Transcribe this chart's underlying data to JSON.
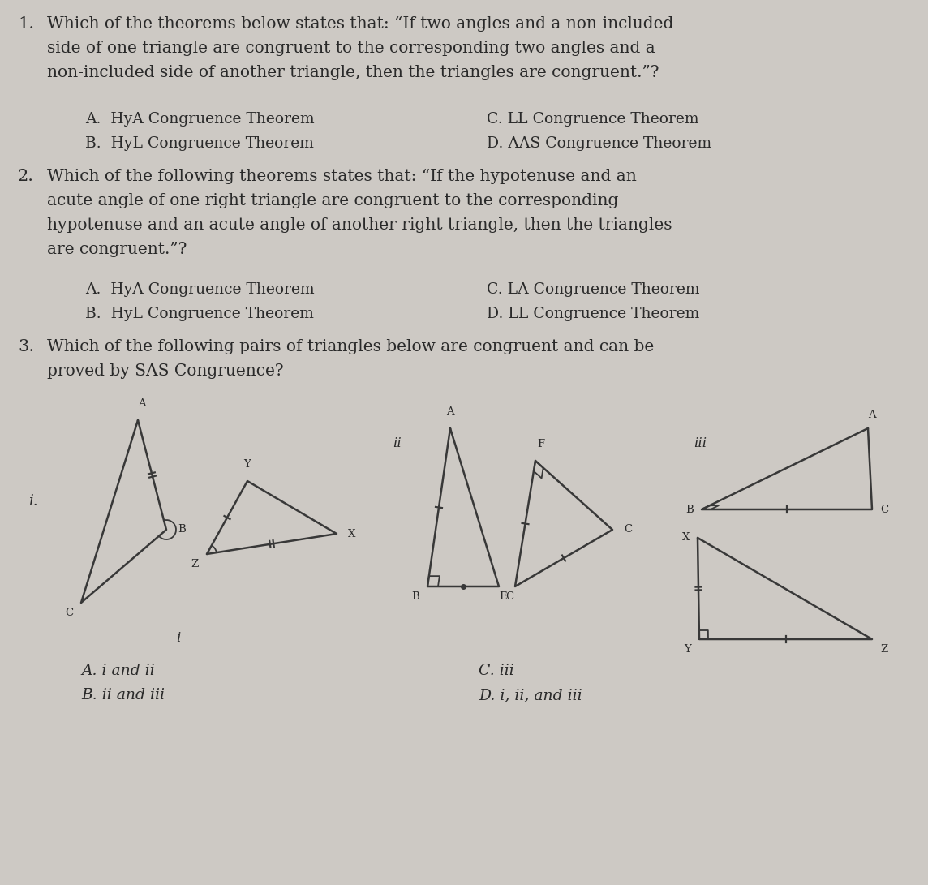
{
  "bg_color": "#cdc9c4",
  "text_color": "#2a2a2a",
  "q1_num": "1.",
  "q1_text_line1": "Which of the theorems below states that: “If two angles and a non-included",
  "q1_text_line2": "side of one triangle are congruent to the corresponding two angles and a",
  "q1_text_line3": "non-included side of another triangle, then the triangles are congruent.”?",
  "q1_A": "A.  HyA Congruence Theorem",
  "q1_C": "C. LL Congruence Theorem",
  "q1_B": "B.  HyL Congruence Theorem",
  "q1_D": "D. AAS Congruence Theorem",
  "q2_num": "2.",
  "q2_text_line1": "Which of the following theorems states that: “If the hypotenuse and an",
  "q2_text_line2": "acute angle of one right triangle are congruent to the corresponding",
  "q2_text_line3": "hypotenuse and an acute angle of another right triangle, then the triangles",
  "q2_text_line4": "are congruent.”?",
  "q2_A": "A.  HyA Congruence Theorem",
  "q2_C": "C. LA Congruence Theorem",
  "q2_B": "B.  HyL Congruence Theorem",
  "q2_D": "D. LL Congruence Theorem",
  "q3_num": "3.",
  "q3_text_line1": "Which of the following pairs of triangles below are congruent and can be",
  "q3_text_line2": "proved by SAS Congruence?",
  "q3_label_i": "i.",
  "q3_label_ii": "ii",
  "q3_label_iii": "iii",
  "q3_foot": "i",
  "q3_A": "A. i and ii",
  "q3_C": "C. iii",
  "q3_B": "B. ii and iii",
  "q3_D": "D. i, ii, and iii"
}
